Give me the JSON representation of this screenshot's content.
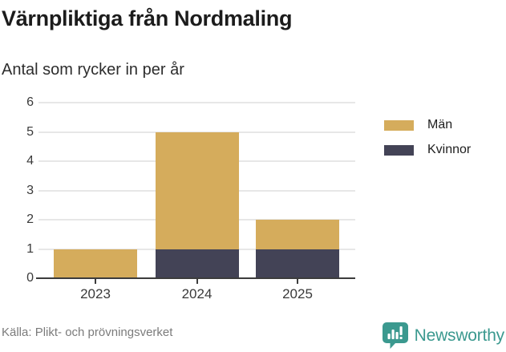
{
  "header": {
    "title": "Värnpliktiga från Nordmaling",
    "subtitle": "Antal som rycker in per år"
  },
  "chart_data": {
    "type": "bar",
    "stacked": true,
    "title": "Värnpliktiga från Nordmaling",
    "subtitle": "Antal som rycker in per år",
    "categories": [
      "2023",
      "2024",
      "2025"
    ],
    "series": [
      {
        "name": "Män",
        "values": [
          1,
          4,
          1
        ],
        "color": "#d5ac5c"
      },
      {
        "name": "Kvinnor",
        "values": [
          0,
          1,
          1
        ],
        "color": "#434356"
      }
    ],
    "stack_order_bottom_to_top": [
      "Kvinnor",
      "Män"
    ],
    "xlabel": "",
    "ylabel": "",
    "ylim": [
      0,
      6
    ],
    "yticks": [
      0,
      1,
      2,
      3,
      4,
      5,
      6
    ],
    "grid": true,
    "legend_position": "right"
  },
  "footer": {
    "source": "Källa: Plikt- och prövningsverket",
    "brand": "Newsworthy"
  },
  "colors": {
    "bar_gold": "#d5ac5c",
    "bar_navy": "#434356",
    "grid": "#e7e7e7",
    "axis": "#3c3c3c",
    "brand_teal": "#3b998f",
    "source_text": "#7b7b7b"
  }
}
